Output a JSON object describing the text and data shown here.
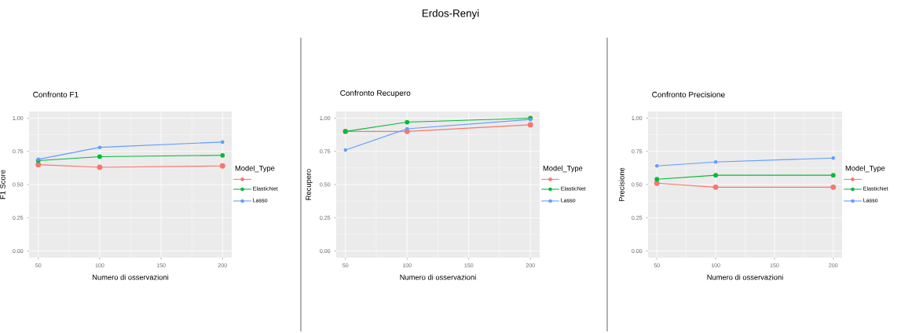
{
  "chart_data": [
    {
      "type": "other",
      "title": "Erdos-Renyi"
    },
    {
      "type": "line",
      "title": "Confronto F1",
      "xlabel": "Numero di osservazioni",
      "ylabel": "F1 Score",
      "legend_title": "Model_Type",
      "x": [
        50,
        100,
        200
      ],
      "series": [
        {
          "color": "#f8766d",
          "values": [
            0.65,
            0.63,
            0.64
          ]
        },
        {
          "name": "ElasticNet",
          "color": "#00ba38",
          "values": [
            0.68,
            0.71,
            0.72
          ]
        },
        {
          "name": "Lasso",
          "color": "#619cff",
          "values": [
            0.69,
            0.78,
            0.82
          ]
        }
      ],
      "xlim": [
        42.5,
        207.5
      ],
      "ylim": [
        -0.05,
        1.05
      ],
      "xticks": [
        50,
        100,
        150,
        200
      ],
      "yticks": [
        {
          "value": 0,
          "label": "0.00"
        },
        {
          "value": 0.25,
          "label": "0.25"
        },
        {
          "value": 0.5,
          "label": "0.50"
        },
        {
          "value": 0.75,
          "label": "0.75"
        },
        {
          "value": 1,
          "label": "1.00"
        }
      ],
      "grid": true,
      "legend": "right",
      "marker": "circle",
      "line_style": "solid"
    },
    {
      "type": "line",
      "title": "Confronto Recupero",
      "xlabel": "Numero di osservazioni",
      "ylabel": "Recupero",
      "legend_title": "Model_Type",
      "x": [
        50,
        100,
        200
      ],
      "series": [
        {
          "color": "#f8766d",
          "values": [
            0.9,
            0.9,
            0.95
          ]
        },
        {
          "name": "ElasticNet",
          "color": "#00ba38",
          "values": [
            0.9,
            0.97,
            1.0
          ]
        },
        {
          "name": "Lasso",
          "color": "#619cff",
          "values": [
            0.76,
            0.92,
            0.99
          ]
        }
      ],
      "xlim": [
        42.5,
        207.5
      ],
      "ylim": [
        -0.05,
        1.05
      ],
      "xticks": [
        50,
        100,
        150,
        200
      ],
      "yticks": [
        {
          "value": 0,
          "label": "0.00"
        },
        {
          "value": 0.25,
          "label": "0.25"
        },
        {
          "value": 0.5,
          "label": "0.50"
        },
        {
          "value": 0.75,
          "label": "0.75"
        },
        {
          "value": 1,
          "label": "1.00"
        }
      ],
      "grid": true,
      "legend": "right",
      "marker": "circle",
      "line_style": "solid"
    },
    {
      "type": "line",
      "title": "Confronto Precisione",
      "xlabel": "Numero di osservazioni",
      "ylabel": "Precisione",
      "legend_title": "Model_Type",
      "x": [
        50,
        100,
        200
      ],
      "series": [
        {
          "color": "#f8766d",
          "values": [
            0.51,
            0.48,
            0.48
          ]
        },
        {
          "name": "ElasticNet",
          "color": "#00ba38",
          "values": [
            0.54,
            0.57,
            0.57
          ]
        },
        {
          "name": "Lasso",
          "color": "#619cff",
          "values": [
            0.64,
            0.67,
            0.7
          ]
        }
      ],
      "xlim": [
        42.5,
        207.5
      ],
      "ylim": [
        -0.05,
        1.05
      ],
      "xticks": [
        50,
        100,
        150,
        200
      ],
      "yticks": [
        {
          "value": 0,
          "label": "0.00"
        },
        {
          "value": 0.25,
          "label": "0.25"
        },
        {
          "value": 0.5,
          "label": "0.50"
        },
        {
          "value": 0.75,
          "label": "0.75"
        },
        {
          "value": 1,
          "label": "1.00"
        }
      ],
      "grid": true,
      "legend": "right",
      "marker": "circle",
      "line_style": "solid"
    }
  ]
}
